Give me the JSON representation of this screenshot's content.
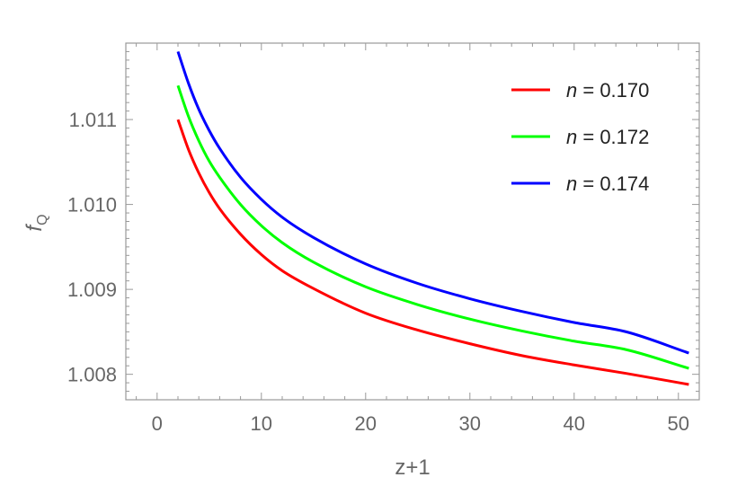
{
  "chart_data": {
    "type": "line",
    "title": "",
    "xlabel": "z+1",
    "ylabel": "f",
    "ylabel_subscript": "Q",
    "xlim": [
      -3,
      52
    ],
    "ylim": [
      1.0077,
      1.0119
    ],
    "x_ticks": [
      0,
      10,
      20,
      30,
      40,
      50
    ],
    "x_tick_labels": [
      "0",
      "10",
      "20",
      "30",
      "40",
      "50"
    ],
    "y_ticks": [
      1.008,
      1.009,
      1.01,
      1.011
    ],
    "y_tick_labels": [
      "1.008",
      "1.009",
      "1.010",
      "1.011"
    ],
    "grid": false,
    "legend_position": "top-right",
    "x": [
      2,
      3,
      4,
      5,
      6,
      8,
      10,
      12,
      15,
      20,
      25,
      30,
      35,
      40,
      45,
      51
    ],
    "series": [
      {
        "legend_var": "n",
        "legend_value": "0.170",
        "color": "#ff0000",
        "values": [
          1.011,
          1.01065,
          1.01037,
          1.01014,
          1.00995,
          1.00965,
          1.00941,
          1.00922,
          1.00901,
          1.00872,
          1.00852,
          1.00836,
          1.00822,
          1.00811,
          1.00801,
          1.00788
        ]
      },
      {
        "legend_var": "n",
        "legend_value": "0.172",
        "color": "#00ff00",
        "values": [
          1.0114,
          1.01104,
          1.01075,
          1.01051,
          1.01032,
          1.01,
          1.00975,
          1.00955,
          1.00932,
          1.00903,
          1.00882,
          1.00865,
          1.00851,
          1.00839,
          1.00829,
          1.00807
        ]
      },
      {
        "legend_var": "n",
        "legend_value": "0.174",
        "color": "#0000ff",
        "values": [
          1.0118,
          1.01143,
          1.01112,
          1.01087,
          1.01066,
          1.01032,
          1.01006,
          1.00985,
          1.00961,
          1.0093,
          1.00907,
          1.00889,
          1.00874,
          1.00861,
          1.0085,
          1.00825
        ]
      }
    ]
  }
}
